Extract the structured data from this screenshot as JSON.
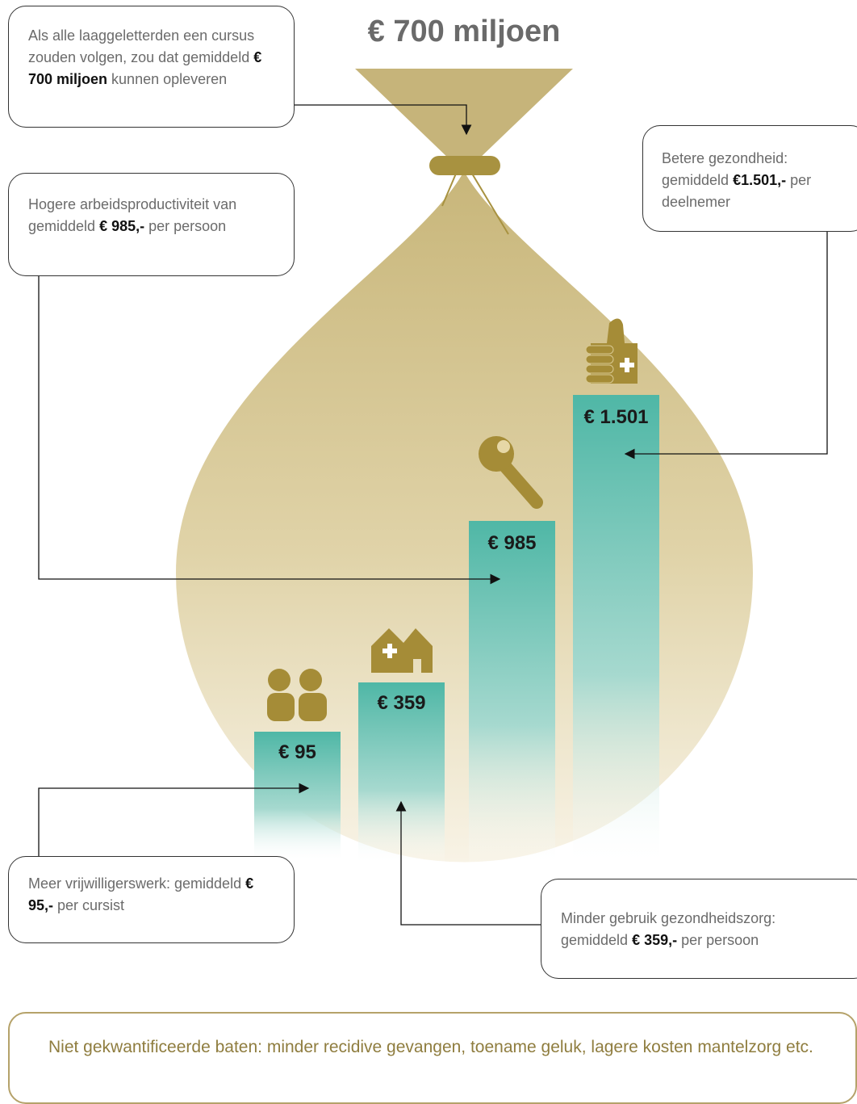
{
  "title": "€ 700 miljoen",
  "callouts": [
    {
      "parts": [
        "Als alle laaggeletterden een cursus zouden volgen, zou dat gemiddeld ",
        "€ 700 miljoen",
        " kunnen opleveren"
      ]
    },
    {
      "parts": [
        "Hogere arbeidsproductiviteit van  gemiddeld ",
        "€ 985,-",
        " per persoon"
      ]
    },
    {
      "parts": [
        "Betere gezondheid: gemiddeld ",
        "€1.501,-",
        " per deelnemer"
      ]
    },
    {
      "parts": [
        "Meer vrijwilligerswerk: gemiddeld ",
        "€ 95,-",
        " per cursist"
      ]
    },
    {
      "parts": [
        "Minder gebruik gezondheidszorg: gemiddeld ",
        "€ 359,-",
        " per persoon"
      ]
    }
  ],
  "bars": [
    {
      "label": "€ 95"
    },
    {
      "label": "€ 359"
    },
    {
      "label": "€ 985"
    },
    {
      "label": "€ 1.501"
    }
  ],
  "footer": "Niet gekwantificeerde baten: minder recidive gevangen, toename geluk, lagere kosten mantelzorg etc."
}
